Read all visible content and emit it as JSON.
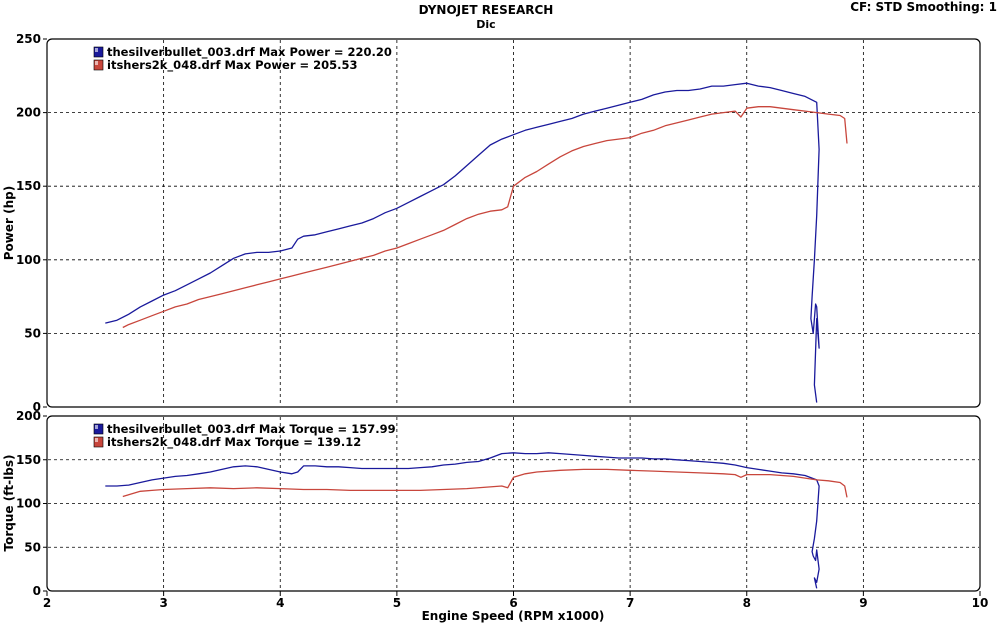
{
  "header": {
    "title": "DYNOJET RESEARCH",
    "subtitle": "Dic",
    "cf_label": "CF: STD  Smoothing: 1"
  },
  "chart_data": [
    {
      "type": "line",
      "ylabel": "Power (hp)",
      "xlim": [
        2,
        10
      ],
      "ylim": [
        0,
        250
      ],
      "yticks": [
        0,
        50,
        100,
        150,
        200,
        250
      ],
      "grid": true,
      "legend_position": "top-left",
      "legend": [
        "thesilverbullet_003.drf Max Power = 220.20",
        "itshers2k_048.drf Max Power = 205.53"
      ],
      "series": [
        {
          "color": "#1a1a9c",
          "x": [
            2.5,
            2.6,
            2.7,
            2.8,
            2.9,
            3.0,
            3.1,
            3.2,
            3.3,
            3.4,
            3.5,
            3.6,
            3.7,
            3.8,
            3.9,
            4.0,
            4.1,
            4.15,
            4.2,
            4.3,
            4.4,
            4.5,
            4.6,
            4.7,
            4.8,
            4.9,
            5.0,
            5.1,
            5.2,
            5.3,
            5.4,
            5.5,
            5.6,
            5.7,
            5.8,
            5.9,
            6.0,
            6.1,
            6.2,
            6.3,
            6.4,
            6.5,
            6.6,
            6.7,
            6.8,
            6.9,
            7.0,
            7.1,
            7.2,
            7.3,
            7.4,
            7.5,
            7.6,
            7.7,
            7.8,
            7.9,
            8.0,
            8.1,
            8.2,
            8.3,
            8.4,
            8.5,
            8.6,
            8.62,
            8.6,
            8.58,
            8.56,
            8.55,
            8.57,
            8.59,
            8.6,
            8.62,
            8.6,
            8.58,
            8.6
          ],
          "y": [
            57,
            59,
            63,
            68,
            72,
            76,
            79,
            83,
            87,
            91,
            96,
            101,
            104,
            105,
            105,
            106,
            108,
            114,
            116,
            117,
            119,
            121,
            123,
            125,
            128,
            132,
            135,
            139,
            143,
            147,
            151,
            157,
            164,
            171,
            178,
            182,
            185,
            188,
            190,
            192,
            194,
            196,
            199,
            201,
            203,
            205,
            207,
            209,
            212,
            214,
            215,
            215,
            216,
            218,
            218,
            219,
            220,
            218,
            217,
            215,
            213,
            211,
            207,
            175,
            130,
            100,
            75,
            60,
            50,
            70,
            68,
            40,
            60,
            15,
            3
          ]
        },
        {
          "color": "#c8463c",
          "x": [
            2.65,
            2.7,
            2.8,
            2.9,
            3.0,
            3.1,
            3.2,
            3.3,
            3.4,
            3.5,
            3.6,
            3.7,
            3.8,
            3.9,
            4.0,
            4.1,
            4.2,
            4.3,
            4.4,
            4.5,
            4.6,
            4.7,
            4.8,
            4.9,
            5.0,
            5.1,
            5.2,
            5.3,
            5.4,
            5.5,
            5.6,
            5.7,
            5.8,
            5.9,
            5.95,
            6.0,
            6.1,
            6.2,
            6.3,
            6.4,
            6.5,
            6.6,
            6.7,
            6.8,
            6.9,
            7.0,
            7.1,
            7.2,
            7.3,
            7.4,
            7.5,
            7.6,
            7.7,
            7.8,
            7.9,
            7.95,
            8.0,
            8.1,
            8.2,
            8.3,
            8.4,
            8.5,
            8.6,
            8.7,
            8.8,
            8.84,
            8.86
          ],
          "y": [
            54,
            56,
            59,
            62,
            65,
            68,
            70,
            73,
            75,
            77,
            79,
            81,
            83,
            85,
            87,
            89,
            91,
            93,
            95,
            97,
            99,
            101,
            103,
            106,
            108,
            111,
            114,
            117,
            120,
            124,
            128,
            131,
            133,
            134,
            136,
            150,
            156,
            160,
            165,
            170,
            174,
            177,
            179,
            181,
            182,
            183,
            186,
            188,
            191,
            193,
            195,
            197,
            199,
            200,
            201,
            197,
            203,
            204,
            204,
            203,
            202,
            201,
            200,
            199,
            198,
            196,
            179
          ]
        }
      ]
    },
    {
      "type": "line",
      "xlabel": "Engine Speed (RPM x1000)",
      "ylabel": "Torque (ft-lbs)",
      "xlim": [
        2,
        10
      ],
      "ylim": [
        0,
        200
      ],
      "xticks": [
        2,
        3,
        4,
        5,
        6,
        7,
        8,
        9,
        10
      ],
      "yticks": [
        0,
        50,
        100,
        150,
        200
      ],
      "grid": true,
      "legend_position": "top-left",
      "legend": [
        "thesilverbullet_003.drf Max Torque = 157.99",
        "itshers2k_048.drf Max Torque = 139.12"
      ],
      "series": [
        {
          "color": "#1a1a9c",
          "x": [
            2.5,
            2.6,
            2.7,
            2.8,
            2.9,
            3.0,
            3.1,
            3.2,
            3.3,
            3.4,
            3.5,
            3.6,
            3.7,
            3.8,
            3.9,
            4.0,
            4.1,
            4.15,
            4.2,
            4.3,
            4.4,
            4.5,
            4.6,
            4.7,
            4.8,
            4.9,
            5.0,
            5.1,
            5.2,
            5.3,
            5.4,
            5.5,
            5.6,
            5.7,
            5.8,
            5.9,
            6.0,
            6.1,
            6.2,
            6.3,
            6.4,
            6.5,
            6.6,
            6.7,
            6.8,
            6.9,
            7.0,
            7.1,
            7.2,
            7.3,
            7.4,
            7.5,
            7.6,
            7.7,
            7.8,
            7.9,
            8.0,
            8.1,
            8.2,
            8.3,
            8.4,
            8.5,
            8.6,
            8.62,
            8.6,
            8.58,
            8.56,
            8.57,
            8.59,
            8.6,
            8.62,
            8.6,
            8.58,
            8.6
          ],
          "y": [
            120,
            120,
            121,
            124,
            127,
            129,
            131,
            132,
            134,
            136,
            139,
            142,
            143,
            142,
            139,
            136,
            134,
            136,
            143,
            143,
            142,
            142,
            141,
            140,
            140,
            140,
            140,
            140,
            141,
            142,
            144,
            145,
            147,
            148,
            152,
            157,
            158,
            157,
            157,
            158,
            157,
            156,
            155,
            154,
            153,
            152,
            152,
            152,
            151,
            151,
            150,
            149,
            148,
            147,
            146,
            144,
            141,
            139,
            137,
            135,
            134,
            132,
            127,
            120,
            80,
            60,
            45,
            40,
            35,
            47,
            25,
            10,
            15,
            3
          ]
        },
        {
          "color": "#c8463c",
          "x": [
            2.65,
            2.7,
            2.8,
            2.9,
            3.0,
            3.2,
            3.4,
            3.6,
            3.8,
            4.0,
            4.2,
            4.4,
            4.6,
            4.8,
            5.0,
            5.2,
            5.4,
            5.6,
            5.8,
            5.9,
            5.95,
            6.0,
            6.1,
            6.2,
            6.4,
            6.6,
            6.8,
            7.0,
            7.2,
            7.4,
            7.6,
            7.8,
            7.9,
            7.95,
            8.0,
            8.2,
            8.4,
            8.6,
            8.7,
            8.8,
            8.84,
            8.86
          ],
          "y": [
            108,
            110,
            114,
            115,
            116,
            117,
            118,
            117,
            118,
            117,
            116,
            116,
            115,
            115,
            115,
            115,
            116,
            117,
            119,
            120,
            118,
            130,
            134,
            136,
            138,
            139,
            139,
            138,
            137,
            136,
            135,
            134,
            133,
            130,
            133,
            133,
            131,
            127,
            126,
            124,
            120,
            107
          ]
        }
      ]
    }
  ]
}
